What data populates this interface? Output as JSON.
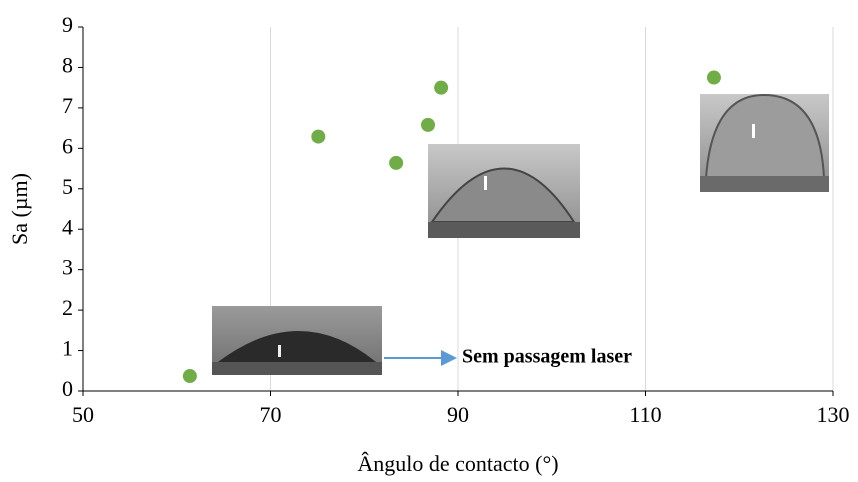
{
  "chart_data": {
    "type": "scatter",
    "x_label": "Ângulo de contacto (°)",
    "y_label": "Sa (µm)",
    "annotation": "Sem passagem laser",
    "x": [
      61.4,
      75.1,
      83.4,
      86.8,
      88.2,
      117.3
    ],
    "values": [
      0.37,
      6.29,
      5.64,
      6.58,
      7.5,
      7.75
    ],
    "color": "#70ad47",
    "xlim": [
      50,
      130
    ],
    "xticks": [
      50,
      70,
      90,
      110,
      130
    ],
    "ylim": [
      0,
      9
    ],
    "yticks": [
      0,
      1,
      2,
      3,
      4,
      5,
      6,
      7,
      8,
      9
    ],
    "grid": true
  }
}
